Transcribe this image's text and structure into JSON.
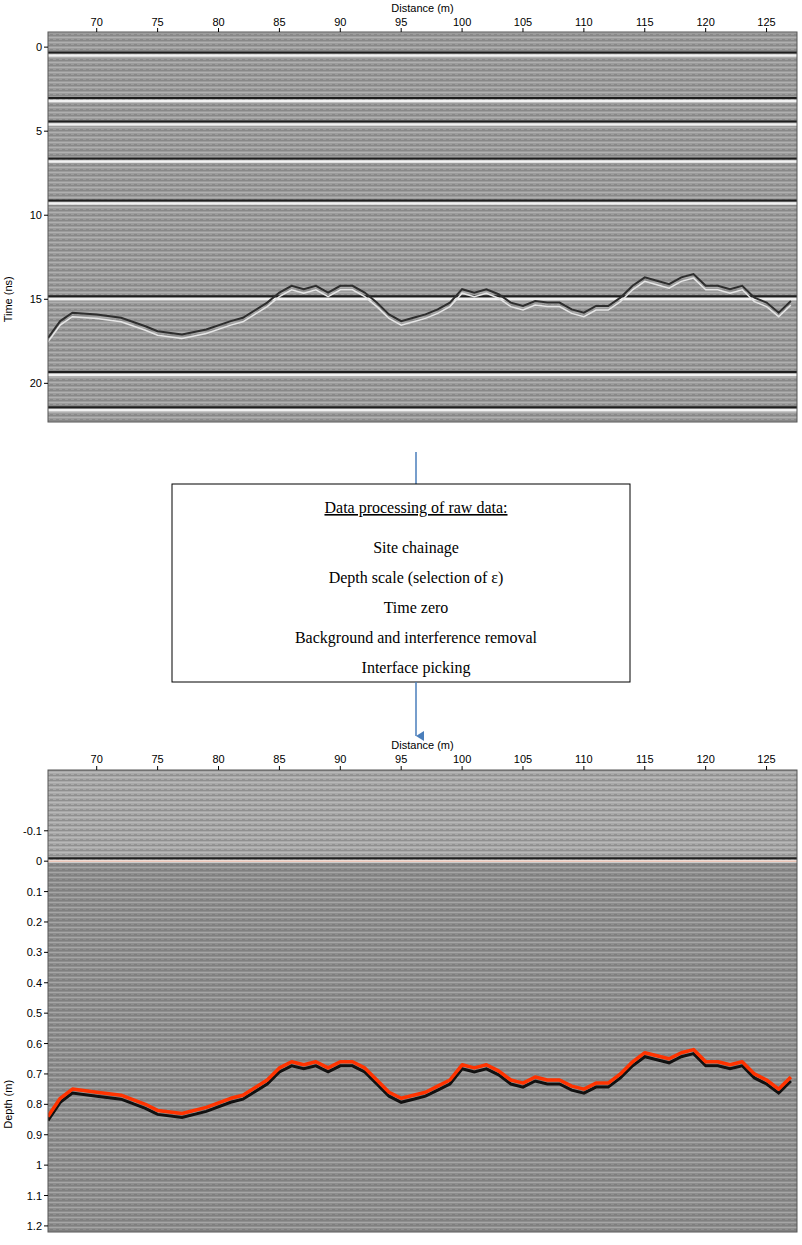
{
  "chart_data": [
    {
      "type": "line",
      "x_label": "Distance (m)",
      "y_label": "Time (ns)",
      "x": [
        66,
        67,
        68,
        70,
        72,
        74,
        75,
        77,
        79,
        81,
        82,
        84,
        85,
        86,
        87,
        88,
        89,
        90,
        91,
        92,
        93,
        94,
        95,
        96,
        97,
        98,
        99,
        100,
        101,
        102,
        103,
        104,
        105,
        106,
        107,
        108,
        109,
        110,
        111,
        112,
        113,
        114,
        115,
        116,
        117,
        118,
        119,
        120,
        121,
        122,
        123,
        124,
        125,
        126,
        127
      ],
      "series": [
        {
          "color": "#2e2e2e",
          "values": [
            17.3,
            16.3,
            15.8,
            15.9,
            16.1,
            16.6,
            16.9,
            17.1,
            16.8,
            16.3,
            16.1,
            15.2,
            14.6,
            14.2,
            14.4,
            14.2,
            14.6,
            14.2,
            14.2,
            14.6,
            15.2,
            15.9,
            16.3,
            16.1,
            15.9,
            15.6,
            15.2,
            14.4,
            14.6,
            14.4,
            14.7,
            15.2,
            15.4,
            15.1,
            15.2,
            15.2,
            15.6,
            15.8,
            15.4,
            15.4,
            14.9,
            14.2,
            13.7,
            13.9,
            14.1,
            13.7,
            13.5,
            14.2,
            14.2,
            14.4,
            14.2,
            14.9,
            15.2,
            15.8,
            15.1
          ]
        }
      ],
      "horizontal_reflections": [
        0.5,
        3.2,
        4.6,
        6.8,
        9.3,
        15.0,
        19.5,
        21.6
      ],
      "xlim": [
        66,
        127.5
      ],
      "xticks": [
        70,
        75,
        80,
        85,
        90,
        95,
        100,
        105,
        110,
        115,
        120,
        125
      ],
      "ylim": [
        -0.9,
        22.3
      ],
      "yticks": [
        0,
        5,
        10,
        15,
        20
      ]
    },
    {
      "type": "line",
      "x_label": "Distance (m)",
      "y_label": "Depth (m)",
      "x": [
        66,
        67,
        68,
        70,
        72,
        74,
        75,
        77,
        79,
        81,
        82,
        84,
        85,
        86,
        87,
        88,
        89,
        90,
        91,
        92,
        93,
        94,
        95,
        96,
        97,
        98,
        99,
        100,
        101,
        102,
        103,
        104,
        105,
        106,
        107,
        108,
        109,
        110,
        111,
        112,
        113,
        114,
        115,
        116,
        117,
        118,
        119,
        120,
        121,
        122,
        123,
        124,
        125,
        126,
        127
      ],
      "series": [
        {
          "color": "#ff3300",
          "values": [
            0.84,
            0.78,
            0.75,
            0.76,
            0.77,
            0.8,
            0.82,
            0.83,
            0.81,
            0.78,
            0.77,
            0.72,
            0.68,
            0.66,
            0.67,
            0.66,
            0.68,
            0.66,
            0.66,
            0.68,
            0.72,
            0.76,
            0.78,
            0.77,
            0.76,
            0.74,
            0.72,
            0.67,
            0.68,
            0.67,
            0.69,
            0.72,
            0.73,
            0.71,
            0.72,
            0.72,
            0.74,
            0.75,
            0.73,
            0.73,
            0.7,
            0.66,
            0.63,
            0.64,
            0.65,
            0.63,
            0.62,
            0.66,
            0.66,
            0.67,
            0.66,
            0.7,
            0.72,
            0.75,
            0.71
          ]
        }
      ],
      "horizontal_reflections": [
        0
      ],
      "xlim": [
        66,
        127.5
      ],
      "xticks": [
        70,
        75,
        80,
        85,
        90,
        95,
        100,
        105,
        110,
        115,
        120,
        125
      ],
      "ylim": [
        -0.3,
        1.22
      ],
      "yticks": [
        -0.1,
        0,
        0.1,
        0.2,
        0.3,
        0.4,
        0.5,
        0.6,
        0.7,
        0.8,
        0.9,
        1,
        1.1,
        1.2
      ]
    }
  ],
  "processing": {
    "title": "Data processing of raw data:",
    "steps": [
      "Site chainage",
      "Depth scale (selection of ε)",
      "Time zero",
      "Background and interference removal",
      "Interface picking"
    ]
  }
}
